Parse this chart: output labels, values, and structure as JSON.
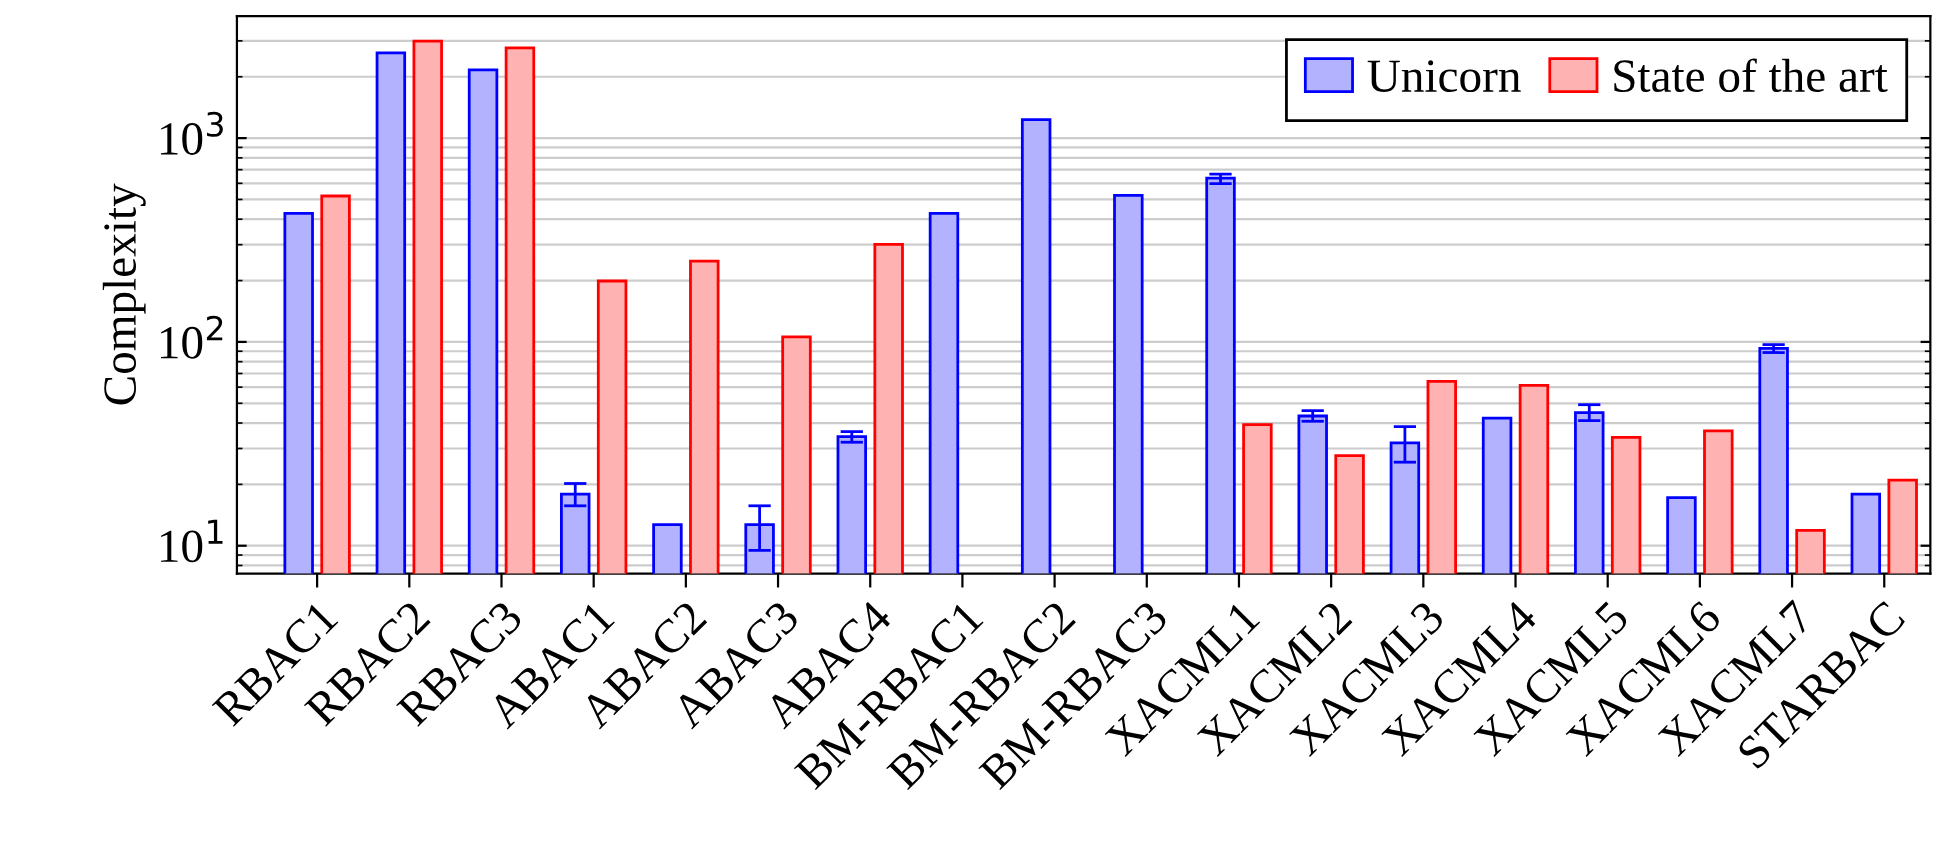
{
  "chart_data": {
    "type": "bar",
    "ylabel": "Complexity",
    "categories": [
      "RBAC1",
      "RBAC2",
      "RBAC3",
      "ABAC1",
      "ABAC2",
      "ABAC3",
      "ABAC4",
      "BM-RBAC1",
      "BM-RBAC2",
      "BM-RBAC3",
      "XACML1",
      "XACML2",
      "XACML3",
      "XACML4",
      "XACML5",
      "XACML6",
      "XACML7",
      "STARBAC"
    ],
    "series": [
      {
        "name": "Unicorn",
        "color": "#0000ff",
        "values": [
          427,
          2620,
          2160,
          17.9,
          12.7,
          12.7,
          34.3,
          427,
          1233,
          523,
          636,
          43.3,
          32,
          42.3,
          45,
          17.2,
          92.9,
          17.9
        ],
        "errors": [
          null,
          null,
          null,
          [
            15.7,
            20.2
          ],
          null,
          [
            9.5,
            15.7
          ],
          [
            32.2,
            36.3
          ],
          null,
          null,
          null,
          [
            598,
            665
          ],
          [
            40.8,
            46
          ],
          [
            25.7,
            38.4
          ],
          null,
          [
            41.1,
            49.2
          ],
          null,
          [
            88.7,
            97
          ],
          null
        ]
      },
      {
        "name": "State of the art",
        "color": "#ff0000",
        "values": [
          520,
          2990,
          2770,
          199,
          249,
          106,
          301,
          null,
          null,
          null,
          39.3,
          27.7,
          64,
          61.2,
          34,
          36.6,
          11.9,
          21
        ]
      }
    ],
    "log": true,
    "ylim": [
      7.3,
      3970
    ],
    "yticks": [
      {
        "value": 10,
        "label": "10$^{1}$"
      },
      {
        "value": 100,
        "label": "10$^{2}$"
      },
      {
        "value": 1000,
        "label": "10$^{3}$"
      }
    ],
    "grid": "y",
    "legend": "top right"
  }
}
